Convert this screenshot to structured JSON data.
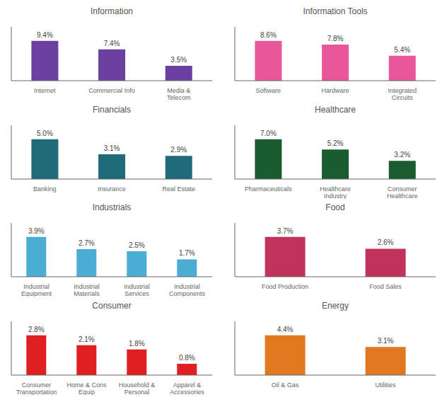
{
  "chart_data": [
    {
      "type": "bar",
      "title": "Information",
      "categories": [
        "Internet",
        "Commercial Info",
        "Media &\nTelecom"
      ],
      "values": [
        9.4,
        7.4,
        3.5
      ],
      "value_labels": [
        "9.4%",
        "7.4%",
        "3.5%"
      ],
      "color": "#6B3FA0",
      "ylim": [
        0,
        12.69
      ],
      "data_labels": true,
      "tick_labels": "x",
      "grid": false
    },
    {
      "type": "bar",
      "title": "Information Tools",
      "categories": [
        "Software",
        "Hardware",
        "Integrated\nCircuits"
      ],
      "values": [
        8.6,
        7.8,
        5.4
      ],
      "value_labels": [
        "8.6%",
        "7.8%",
        "5.4%"
      ],
      "color": "#E8579A",
      "ylim": [
        0,
        11.61
      ],
      "data_labels": true,
      "tick_labels": "x",
      "grid": false
    },
    {
      "type": "bar",
      "title": "Financials",
      "categories": [
        "Banking",
        "Insurance",
        "Real Estate"
      ],
      "values": [
        5.0,
        3.1,
        2.9
      ],
      "value_labels": [
        "5.0%",
        "3.1%",
        "2.9%"
      ],
      "color": "#1F6B7A",
      "ylim": [
        0,
        6.75
      ],
      "data_labels": true,
      "tick_labels": "x",
      "grid": false
    },
    {
      "type": "bar",
      "title": "Healthcare",
      "categories": [
        "Pharmaceuticals",
        "Healthcare\nIndustry",
        "Consumer\nHealthcare"
      ],
      "values": [
        7.0,
        5.2,
        3.2
      ],
      "value_labels": [
        "7.0%",
        "5.2%",
        "3.2%"
      ],
      "color": "#1A5C30",
      "ylim": [
        0,
        9.45
      ],
      "data_labels": true,
      "tick_labels": "x",
      "grid": false
    },
    {
      "type": "bar",
      "title": "Industrials",
      "categories": [
        "Industrial\nEquipment",
        "Industrial\nMaterials",
        "Industrial\nServices",
        "Industrial\nComponents"
      ],
      "values": [
        3.9,
        2.7,
        2.5,
        1.7
      ],
      "value_labels": [
        "3.9%",
        "2.7%",
        "2.5%",
        "1.7%"
      ],
      "color": "#4BADD4",
      "ylim": [
        0,
        5.265
      ],
      "data_labels": true,
      "tick_labels": "x",
      "grid": false
    },
    {
      "type": "bar",
      "title": "Food",
      "categories": [
        "Food Production",
        "Food Sales"
      ],
      "values": [
        3.7,
        2.6
      ],
      "value_labels": [
        "3.7%",
        "2.6%"
      ],
      "color": "#C0335A",
      "ylim": [
        0,
        4.995
      ],
      "data_labels": true,
      "tick_labels": "x",
      "grid": false
    },
    {
      "type": "bar",
      "title": "Consumer",
      "categories": [
        "Consumer\nTransportation",
        "Home & Cons\nEquip",
        "Household &\nPersonal",
        "Apparel &\nAccessories"
      ],
      "values": [
        2.8,
        2.1,
        1.8,
        0.8
      ],
      "value_labels": [
        "2.8%",
        "2.1%",
        "1.8%",
        "0.8%"
      ],
      "color": "#E02020",
      "ylim": [
        0,
        3.78
      ],
      "data_labels": true,
      "tick_labels": "x",
      "grid": false
    },
    {
      "type": "bar",
      "title": "Energy",
      "categories": [
        "Oil & Gas",
        "Utilities"
      ],
      "values": [
        4.4,
        3.1
      ],
      "value_labels": [
        "4.4%",
        "3.1%"
      ],
      "color": "#E07820",
      "ylim": [
        0,
        5.94
      ],
      "data_labels": true,
      "tick_labels": "x",
      "grid": false
    }
  ]
}
